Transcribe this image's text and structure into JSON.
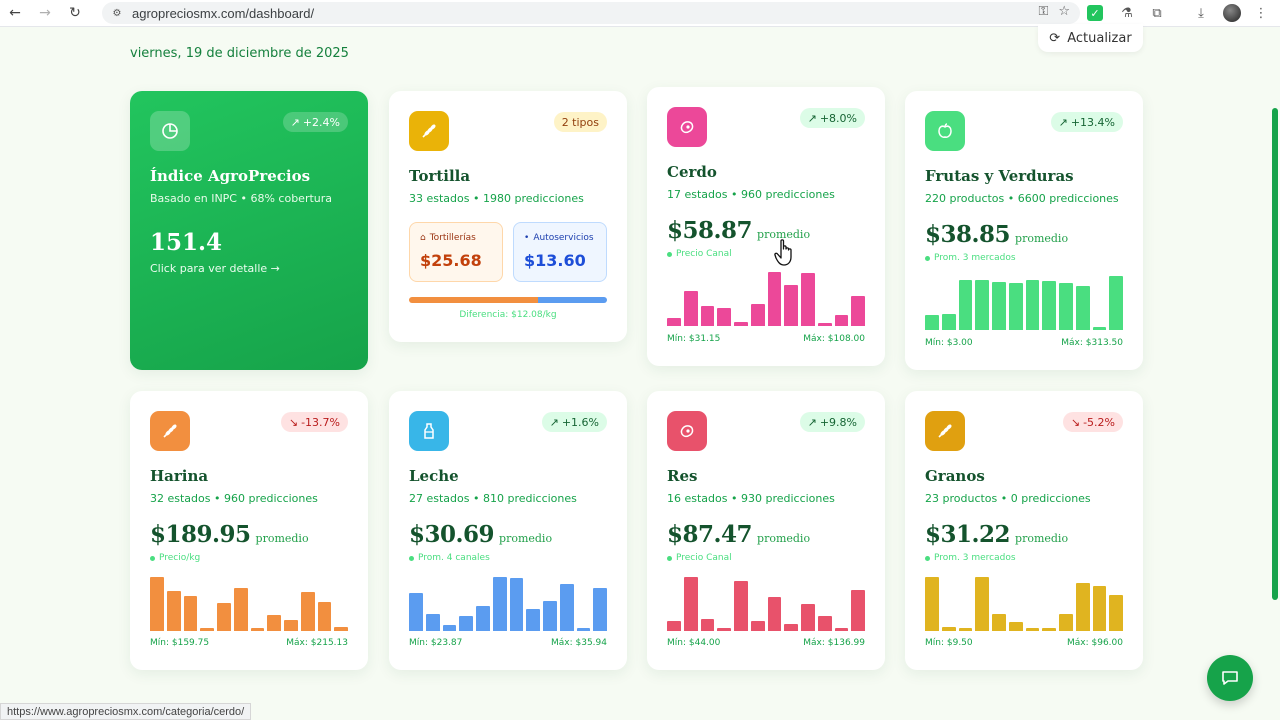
{
  "browser": {
    "url": "agropreciosmx.com/dashboard/",
    "status_url": "https://www.agropreciosmx.com/categoria/cerdo/"
  },
  "header": {
    "date": "viernes, 19 de diciembre de 2025",
    "refresh_label": "Actualizar"
  },
  "cards": {
    "indice": {
      "title": "Índice AgroPrecios",
      "subtitle": "Basado en INPC • 68% cobertura",
      "badge": "+2.4%",
      "value": "151.4",
      "link": "Click para ver detalle →",
      "color": "#22c55e"
    },
    "tortilla": {
      "title": "Tortilla",
      "subtitle": "33 estados • 1980 predicciones",
      "badge": "2 tipos",
      "tortillerias_label": "Tortillerías",
      "tortillerias_value": "$25.68",
      "autoservicios_label": "Autoservicios",
      "autoservicios_value": "$13.60",
      "difference": "Diferencia: $12.08/kg",
      "color": "#eab308"
    },
    "cerdo": {
      "title": "Cerdo",
      "subtitle": "17 estados • 960 predicciones",
      "badge": "+8.0%",
      "price": "$58.87",
      "unit": "promedio",
      "note": "Precio Canal",
      "min": "Mín: $31.15",
      "max": "Máx: $108.00",
      "color": "#ec4899",
      "bars": [
        0.14,
        0.62,
        0.36,
        0.32,
        0.08,
        0.4,
        0.96,
        0.74,
        0.94,
        0.06,
        0.2,
        0.54
      ]
    },
    "frutas": {
      "title": "Frutas y Verduras",
      "subtitle": "220 productos • 6600 predicciones",
      "badge": "+13.4%",
      "price": "$38.85",
      "unit": "promedio",
      "note": "Prom. 3 mercados",
      "min": "Mín: $3.00",
      "max": "Máx: $313.50",
      "color": "#4ade80",
      "bars": [
        0.26,
        0.28,
        0.9,
        0.9,
        0.86,
        0.84,
        0.9,
        0.88,
        0.84,
        0.78,
        0.06,
        0.96
      ]
    },
    "harina": {
      "title": "Harina",
      "subtitle": "32 estados • 960 predicciones",
      "badge": "-13.7%",
      "price": "$189.95",
      "unit": "promedio",
      "note": "Precio/kg",
      "min": "Mín: $159.75",
      "max": "Máx: $215.13",
      "color": "#f28f3f",
      "bars": [
        0.96,
        0.72,
        0.62,
        0.06,
        0.5,
        0.76,
        0.06,
        0.28,
        0.2,
        0.7,
        0.52,
        0.08
      ]
    },
    "leche": {
      "title": "Leche",
      "subtitle": "27 estados • 810 predicciones",
      "badge": "+1.6%",
      "price": "$30.69",
      "unit": "promedio",
      "note": "Prom. 4 canales",
      "min": "Mín: $23.87",
      "max": "Máx: $35.94",
      "color": "#5b9cf0",
      "bars": [
        0.68,
        0.3,
        0.1,
        0.26,
        0.44,
        0.96,
        0.94,
        0.4,
        0.54,
        0.84,
        0.06,
        0.76
      ]
    },
    "res": {
      "title": "Res",
      "subtitle": "16 estados • 930 predicciones",
      "badge": "+9.8%",
      "price": "$87.47",
      "unit": "promedio",
      "note": "Precio Canal",
      "min": "Mín: $44.00",
      "max": "Máx: $136.99",
      "color": "#e8526b",
      "bars": [
        0.18,
        0.96,
        0.22,
        0.06,
        0.9,
        0.18,
        0.6,
        0.12,
        0.48,
        0.26,
        0.06,
        0.74
      ]
    },
    "granos": {
      "title": "Granos",
      "subtitle": "23 productos • 0 predicciones",
      "badge": "-5.2%",
      "price": "$31.22",
      "unit": "promedio",
      "note": "Prom. 3 mercados",
      "min": "Mín: $9.50",
      "max": "Máx: $96.00",
      "color": "#e0b420",
      "bars": [
        0.96,
        0.08,
        0.06,
        0.96,
        0.3,
        0.16,
        0.06,
        0.06,
        0.3,
        0.86,
        0.8,
        0.64
      ]
    }
  }
}
